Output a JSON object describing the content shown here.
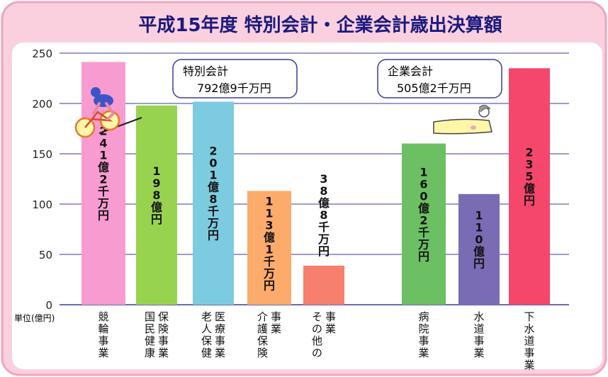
{
  "colors": {
    "frame": "#fbd0de",
    "frame_edge": "#f2a3be",
    "panel": "#ffffff",
    "title": "#1a1a7e",
    "grid": "#3a3a9a"
  },
  "chart_data": {
    "type": "bar",
    "title": "平成15年度 特別会計・企業会計歳出決算額",
    "unit_label": "単位(億円)",
    "ylim": [
      0,
      250
    ],
    "yticks": [
      "0",
      "50",
      "100",
      "150",
      "200",
      "250"
    ],
    "grid": true,
    "groups": [
      {
        "name": "特別会計",
        "total_label": "792億9千万円"
      },
      {
        "name": "企業会計",
        "total_label": "505億2千万円"
      }
    ],
    "bars": [
      {
        "category": "競輪事業",
        "category_lines": [
          "競輪事業"
        ],
        "value": 241.2,
        "value_label": "241億2千万円",
        "color": "#f79bd0",
        "group": 0
      },
      {
        "category": "国民健康保険事業",
        "category_lines": [
          "保険事業",
          "国民健康"
        ],
        "value": 198,
        "value_label": "198億円",
        "color": "#98d350",
        "group": 0
      },
      {
        "category": "老人保健医療事業",
        "category_lines": [
          "医療事業",
          "老人保健"
        ],
        "value": 201.8,
        "value_label": "201億8千万円",
        "color": "#7dcbe0",
        "group": 0
      },
      {
        "category": "介護保険事業",
        "category_lines": [
          "事業",
          "介護保険"
        ],
        "value": 113.1,
        "value_label": "113億1千万円",
        "color": "#fcab6a",
        "group": 0
      },
      {
        "category": "その他の事業",
        "category_lines": [
          "事業",
          "その他の"
        ],
        "value": 38.8,
        "value_label": "38億8千万円",
        "color": "#f77f6e",
        "group": 0
      },
      {
        "category": "病院事業",
        "category_lines": [
          "病院事業"
        ],
        "value": 160.2,
        "value_label": "160億2千万円",
        "color": "#6cbf62",
        "group": 1
      },
      {
        "category": "水道事業",
        "category_lines": [
          "水道事業"
        ],
        "value": 110,
        "value_label": "110億円",
        "color": "#7a6cb4",
        "group": 1
      },
      {
        "category": "下水道事業",
        "category_lines": [
          "下水道事業"
        ],
        "value": 235,
        "value_label": "235億円",
        "color": "#f5466c",
        "group": 1
      }
    ]
  }
}
